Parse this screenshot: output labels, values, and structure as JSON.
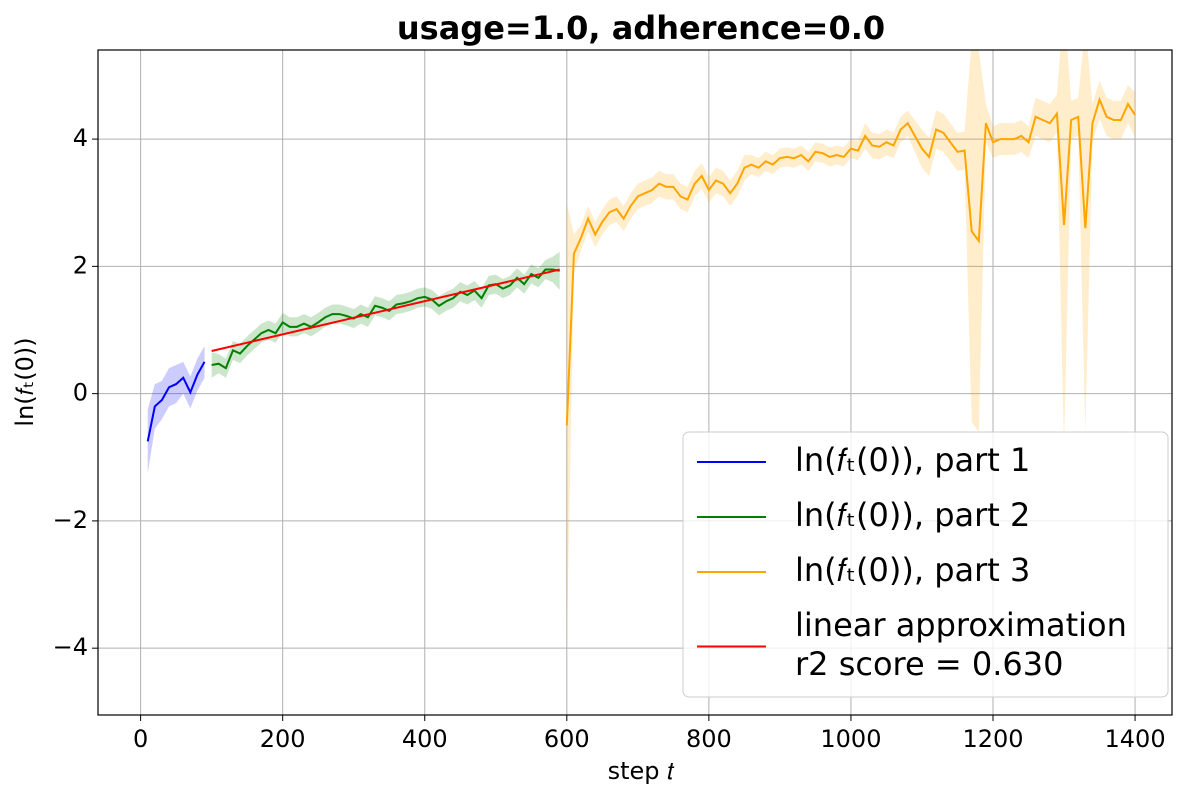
{
  "chart_data": {
    "type": "line",
    "title": "usage=1.0, adherence=0.0",
    "xlabel": "step 𝑡",
    "ylabel": "ln(𝑓ₜ(0))",
    "xlim": [
      -60,
      1452
    ],
    "ylim": [
      -5.05,
      5.4
    ],
    "xticks": [
      0,
      200,
      400,
      600,
      800,
      1000,
      1200,
      1400
    ],
    "yticks": [
      {
        "value": -4,
        "label": "−4"
      },
      {
        "value": -2,
        "label": "−2"
      },
      0,
      2,
      4
    ],
    "grid": true,
    "legend": "lower right",
    "band_opacity": 0.2,
    "series": [
      {
        "name": "ln(𝑓ₜ(0)), part 1",
        "color": "#0000ff",
        "x": [
          10,
          20,
          30,
          40,
          50,
          60,
          70,
          80,
          90
        ],
        "values": [
          -0.75,
          -0.2,
          -0.1,
          0.1,
          0.15,
          0.25,
          0.02,
          0.3,
          0.5
        ],
        "errors": [
          0.5,
          0.35,
          0.3,
          0.3,
          0.3,
          0.25,
          0.25,
          0.25,
          0.25
        ]
      },
      {
        "name": "ln(𝑓ₜ(0)), part 2",
        "color": "#008000",
        "x": [
          100,
          110,
          120,
          130,
          140,
          150,
          160,
          170,
          180,
          190,
          200,
          210,
          220,
          230,
          240,
          250,
          260,
          270,
          280,
          290,
          300,
          310,
          320,
          330,
          340,
          350,
          360,
          370,
          380,
          390,
          400,
          410,
          420,
          430,
          440,
          450,
          460,
          470,
          480,
          490,
          500,
          510,
          520,
          530,
          540,
          550,
          560,
          570,
          580,
          590
        ],
        "values": [
          0.45,
          0.47,
          0.4,
          0.68,
          0.63,
          0.75,
          0.85,
          0.95,
          1.0,
          0.95,
          1.12,
          1.05,
          1.05,
          1.1,
          1.05,
          1.12,
          1.2,
          1.25,
          1.25,
          1.22,
          1.18,
          1.25,
          1.2,
          1.38,
          1.35,
          1.3,
          1.4,
          1.42,
          1.45,
          1.5,
          1.52,
          1.48,
          1.38,
          1.45,
          1.5,
          1.6,
          1.55,
          1.62,
          1.5,
          1.7,
          1.72,
          1.65,
          1.7,
          1.82,
          1.72,
          1.88,
          1.82,
          1.95,
          1.95,
          1.93
        ],
        "errors": [
          0.2,
          0.15,
          0.15,
          0.15,
          0.15,
          0.15,
          0.15,
          0.15,
          0.15,
          0.15,
          0.15,
          0.15,
          0.15,
          0.15,
          0.15,
          0.15,
          0.15,
          0.15,
          0.15,
          0.15,
          0.15,
          0.15,
          0.15,
          0.15,
          0.15,
          0.15,
          0.15,
          0.15,
          0.15,
          0.15,
          0.15,
          0.15,
          0.15,
          0.15,
          0.15,
          0.15,
          0.15,
          0.15,
          0.15,
          0.15,
          0.15,
          0.15,
          0.15,
          0.15,
          0.15,
          0.15,
          0.15,
          0.15,
          0.2,
          0.3
        ]
      },
      {
        "name": "ln(𝑓ₜ(0)), part 3",
        "color": "#ffa500",
        "x": [
          600,
          610,
          620,
          630,
          640,
          650,
          660,
          670,
          680,
          690,
          700,
          710,
          720,
          730,
          740,
          750,
          760,
          770,
          780,
          790,
          800,
          810,
          820,
          830,
          840,
          850,
          860,
          870,
          880,
          890,
          900,
          910,
          920,
          930,
          940,
          950,
          960,
          970,
          980,
          990,
          1000,
          1010,
          1020,
          1030,
          1040,
          1050,
          1060,
          1070,
          1080,
          1090,
          1100,
          1110,
          1120,
          1130,
          1140,
          1150,
          1160,
          1170,
          1180,
          1190,
          1200,
          1210,
          1220,
          1230,
          1240,
          1250,
          1260,
          1270,
          1280,
          1290,
          1300,
          1310,
          1320,
          1330,
          1340,
          1350,
          1360,
          1370,
          1380,
          1390,
          1400
        ],
        "values": [
          -0.5,
          2.2,
          2.45,
          2.75,
          2.5,
          2.7,
          2.85,
          2.9,
          2.75,
          2.95,
          3.1,
          3.15,
          3.2,
          3.3,
          3.25,
          3.25,
          3.1,
          3.05,
          3.3,
          3.42,
          3.2,
          3.35,
          3.3,
          3.15,
          3.3,
          3.55,
          3.6,
          3.55,
          3.65,
          3.6,
          3.7,
          3.72,
          3.7,
          3.75,
          3.65,
          3.8,
          3.78,
          3.72,
          3.75,
          3.72,
          3.85,
          3.82,
          4.05,
          3.9,
          3.88,
          3.95,
          3.9,
          4.15,
          4.25,
          4.05,
          3.85,
          3.72,
          4.15,
          4.1,
          3.95,
          3.8,
          3.82,
          2.55,
          2.4,
          4.25,
          3.95,
          4.0,
          4.0,
          4.0,
          4.05,
          3.95,
          4.35,
          4.3,
          4.25,
          4.4,
          2.65,
          4.3,
          4.35,
          2.6,
          4.25,
          4.62,
          4.35,
          4.3,
          4.3,
          4.55,
          4.38
        ],
        "errors": [
          3.5,
          0.3,
          0.2,
          0.2,
          0.2,
          0.2,
          0.2,
          0.2,
          0.2,
          0.2,
          0.2,
          0.2,
          0.2,
          0.2,
          0.2,
          0.2,
          0.2,
          0.2,
          0.2,
          0.2,
          0.2,
          0.2,
          0.2,
          0.2,
          0.2,
          0.2,
          0.15,
          0.15,
          0.15,
          0.15,
          0.15,
          0.15,
          0.15,
          0.15,
          0.15,
          0.15,
          0.15,
          0.15,
          0.15,
          0.15,
          0.15,
          0.15,
          0.2,
          0.2,
          0.2,
          0.2,
          0.2,
          0.2,
          0.2,
          0.25,
          0.3,
          0.3,
          0.3,
          0.3,
          0.3,
          0.3,
          0.3,
          3.0,
          3.0,
          0.3,
          0.25,
          0.25,
          0.25,
          0.25,
          0.25,
          0.25,
          0.3,
          0.3,
          0.3,
          0.3,
          3.5,
          0.3,
          0.3,
          3.2,
          0.3,
          0.3,
          0.3,
          0.3,
          0.3,
          0.3,
          0.35
        ]
      },
      {
        "name": [
          "linear approximation",
          "r2 score = 0.630"
        ],
        "color": "#ff0000",
        "x": [
          100,
          590
        ],
        "values": [
          0.67,
          1.95
        ]
      }
    ]
  }
}
